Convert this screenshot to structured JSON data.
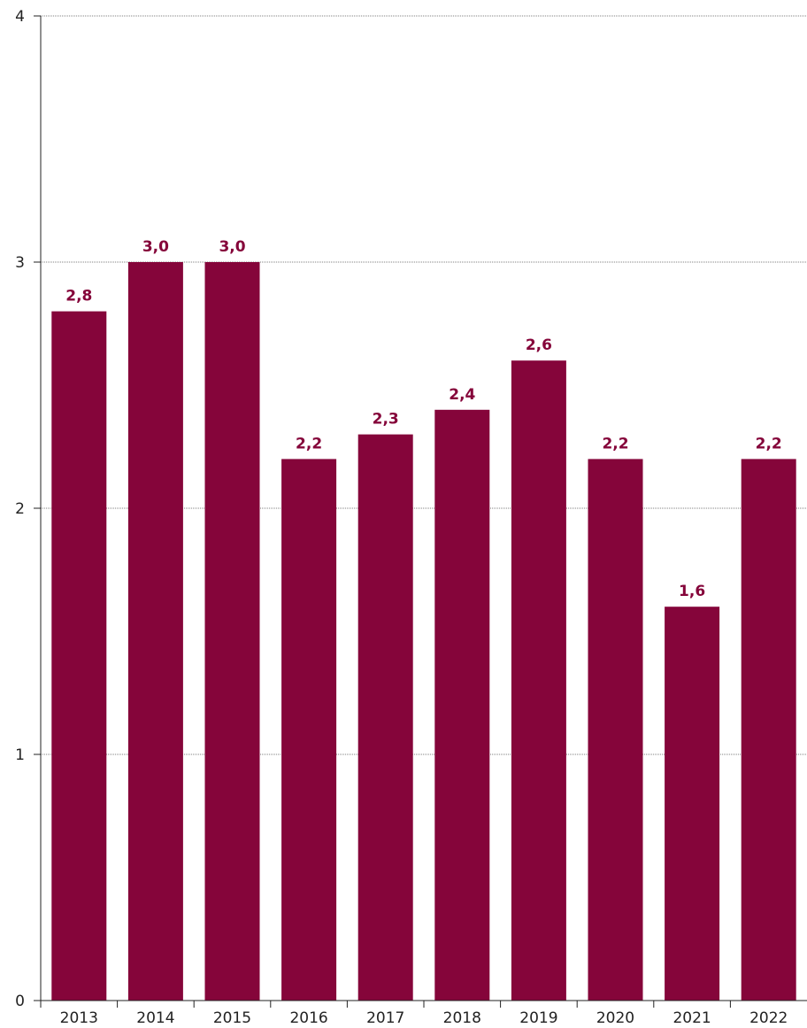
{
  "chart_data": {
    "type": "bar",
    "categories": [
      "2013",
      "2014",
      "2015",
      "2016",
      "2017",
      "2018",
      "2019",
      "2020",
      "2021",
      "2022"
    ],
    "values": [
      2.8,
      3.0,
      3.0,
      2.2,
      2.3,
      2.4,
      2.6,
      2.2,
      1.6,
      2.2
    ],
    "value_labels": [
      "2,8",
      "3,0",
      "3,0",
      "2,2",
      "2,3",
      "2,4",
      "2,6",
      "2,2",
      "1,6",
      "2,2"
    ],
    "title": "",
    "xlabel": "",
    "ylabel": "",
    "ylim": [
      0,
      4
    ],
    "yticks": [
      0,
      1,
      2,
      3,
      4
    ],
    "ytick_labels": [
      "0",
      "1",
      "2",
      "3",
      "4"
    ],
    "grid": true,
    "legend": "none",
    "bar_color": "#85053a",
    "label_color": "#85053a"
  }
}
